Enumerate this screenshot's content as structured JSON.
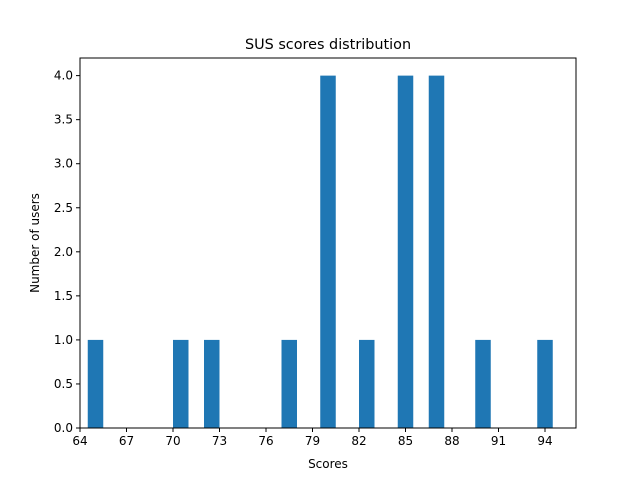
{
  "chart_data": {
    "type": "bar",
    "title": "SUS scores distribution",
    "xlabel": "Scores",
    "ylabel": "Number of users",
    "xlim": [
      64,
      96
    ],
    "ylim": [
      0,
      4.2
    ],
    "x_ticks": [
      64,
      67,
      70,
      73,
      76,
      79,
      82,
      85,
      88,
      91,
      94
    ],
    "y_ticks": [
      0.0,
      0.5,
      1.0,
      1.5,
      2.0,
      2.5,
      3.0,
      3.5,
      4.0
    ],
    "y_tick_labels": [
      "0.0",
      "0.5",
      "1.0",
      "1.5",
      "2.0",
      "2.5",
      "3.0",
      "3.5",
      "4.0"
    ],
    "bin_width": 1,
    "bars": [
      {
        "x": 65,
        "value": 1
      },
      {
        "x": 70.5,
        "value": 1
      },
      {
        "x": 72.5,
        "value": 1
      },
      {
        "x": 77.5,
        "value": 1
      },
      {
        "x": 80,
        "value": 4
      },
      {
        "x": 82.5,
        "value": 1
      },
      {
        "x": 85,
        "value": 4
      },
      {
        "x": 87,
        "value": 4
      },
      {
        "x": 90,
        "value": 1
      },
      {
        "x": 94,
        "value": 1
      }
    ],
    "bar_color": "#1f77b4",
    "grid": false,
    "legend": "none"
  }
}
